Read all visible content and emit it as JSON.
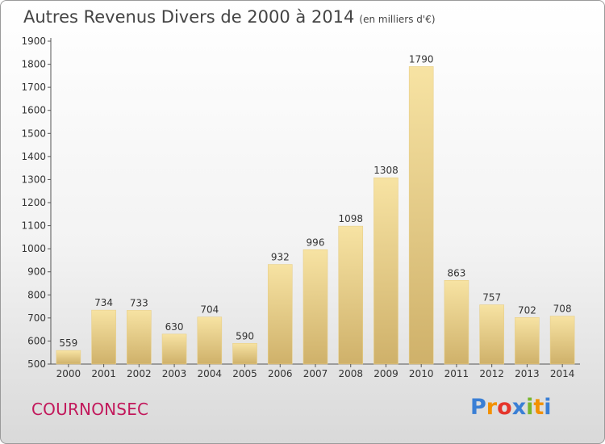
{
  "title": "Autres Revenus Divers de 2000 à 2014",
  "subtitle": "(en milliers d'€)",
  "city": "COURNONSEC",
  "logo": {
    "letters": [
      "P",
      "r",
      "o",
      "x",
      "i",
      "t",
      "i"
    ],
    "colors": [
      "#3a7fd5",
      "#f29100",
      "#e5352b",
      "#3a7fd5",
      "#78b62b",
      "#f29100",
      "#3a7fd5"
    ]
  },
  "chart_data": {
    "type": "bar",
    "categories": [
      "2000",
      "2001",
      "2002",
      "2003",
      "2004",
      "2005",
      "2006",
      "2007",
      "2008",
      "2009",
      "2010",
      "2011",
      "2012",
      "2013",
      "2014"
    ],
    "values": [
      559,
      734,
      733,
      630,
      704,
      590,
      932,
      996,
      1098,
      1308,
      1790,
      863,
      757,
      702,
      708
    ],
    "ylim": [
      500,
      1900
    ],
    "yticks": [
      500,
      600,
      700,
      800,
      900,
      1000,
      1100,
      1200,
      1300,
      1400,
      1500,
      1600,
      1700,
      1800,
      1900
    ],
    "grid": false,
    "data_labels": true,
    "bar_color": "#e9cf86"
  }
}
